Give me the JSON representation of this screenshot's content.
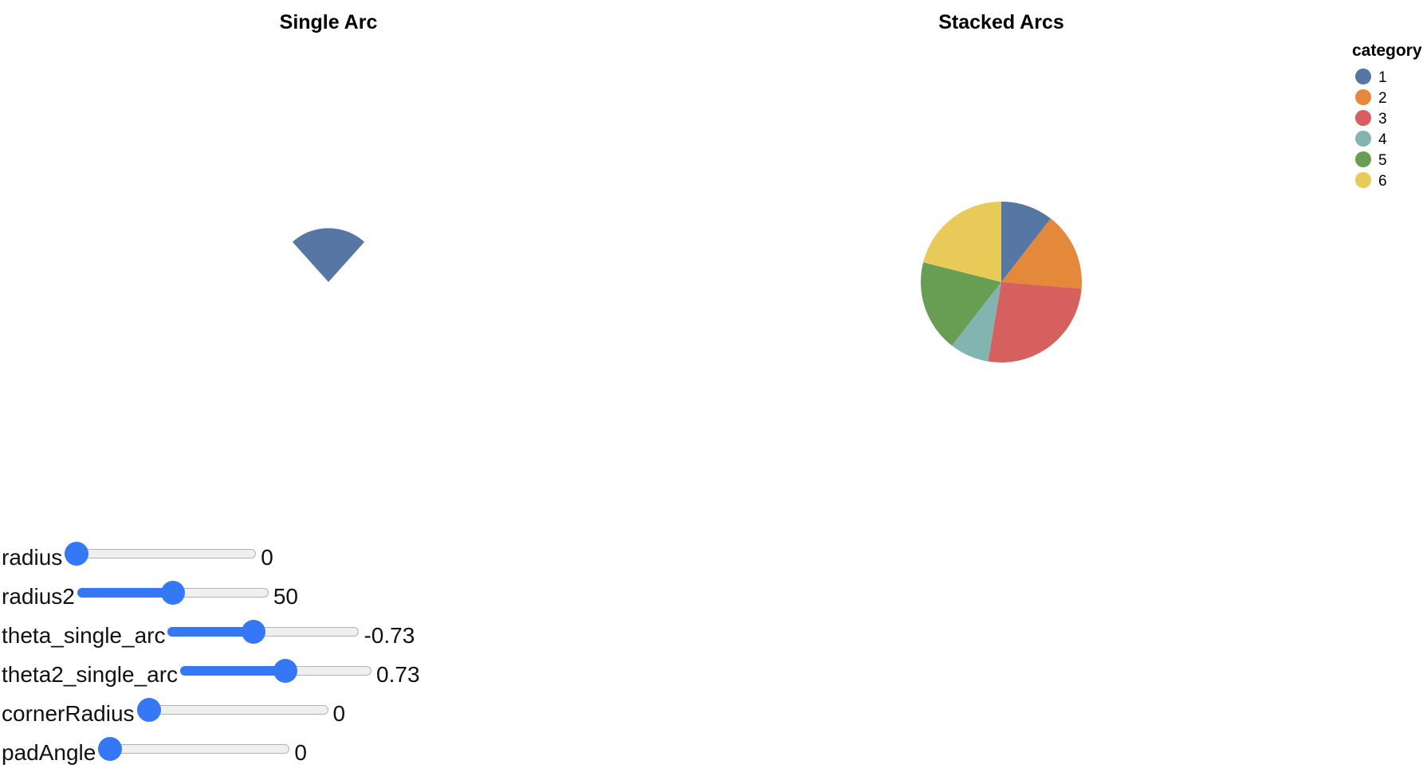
{
  "chart_data": [
    {
      "type": "pie",
      "title": "Single Arc",
      "mark": "arc",
      "color": "#5677a4",
      "radius": 0,
      "radius2": 50,
      "theta": -0.73,
      "theta2": 0.73,
      "cornerRadius": 0,
      "padAngle": 0
    },
    {
      "type": "pie",
      "title": "Stacked Arcs",
      "legend": {
        "title": "category",
        "position": "top-right"
      },
      "categories": [
        "1",
        "2",
        "3",
        "4",
        "5",
        "6"
      ],
      "values": [
        4,
        6,
        10,
        3,
        7,
        8
      ],
      "colors": [
        "#5677a4",
        "#e4883a",
        "#d5605d",
        "#82b5b1",
        "#679e54",
        "#e8ca58"
      ]
    }
  ],
  "controls": [
    {
      "label": "radius",
      "value": "0",
      "min": 0,
      "max": 100,
      "current": 0
    },
    {
      "label": "radius2",
      "value": "50",
      "min": 0,
      "max": 100,
      "current": 50
    },
    {
      "label": "theta_single_arc",
      "value": "-0.73",
      "min": -6.28,
      "max": 6.28,
      "current": -0.73
    },
    {
      "label": "theta2_single_arc",
      "value": "0.73",
      "min": -6.28,
      "max": 6.28,
      "current": 0.73
    },
    {
      "label": "cornerRadius",
      "value": "0",
      "min": 0,
      "max": 50,
      "current": 0
    },
    {
      "label": "padAngle",
      "value": "0",
      "min": 0,
      "max": 1.57,
      "current": 0
    }
  ]
}
